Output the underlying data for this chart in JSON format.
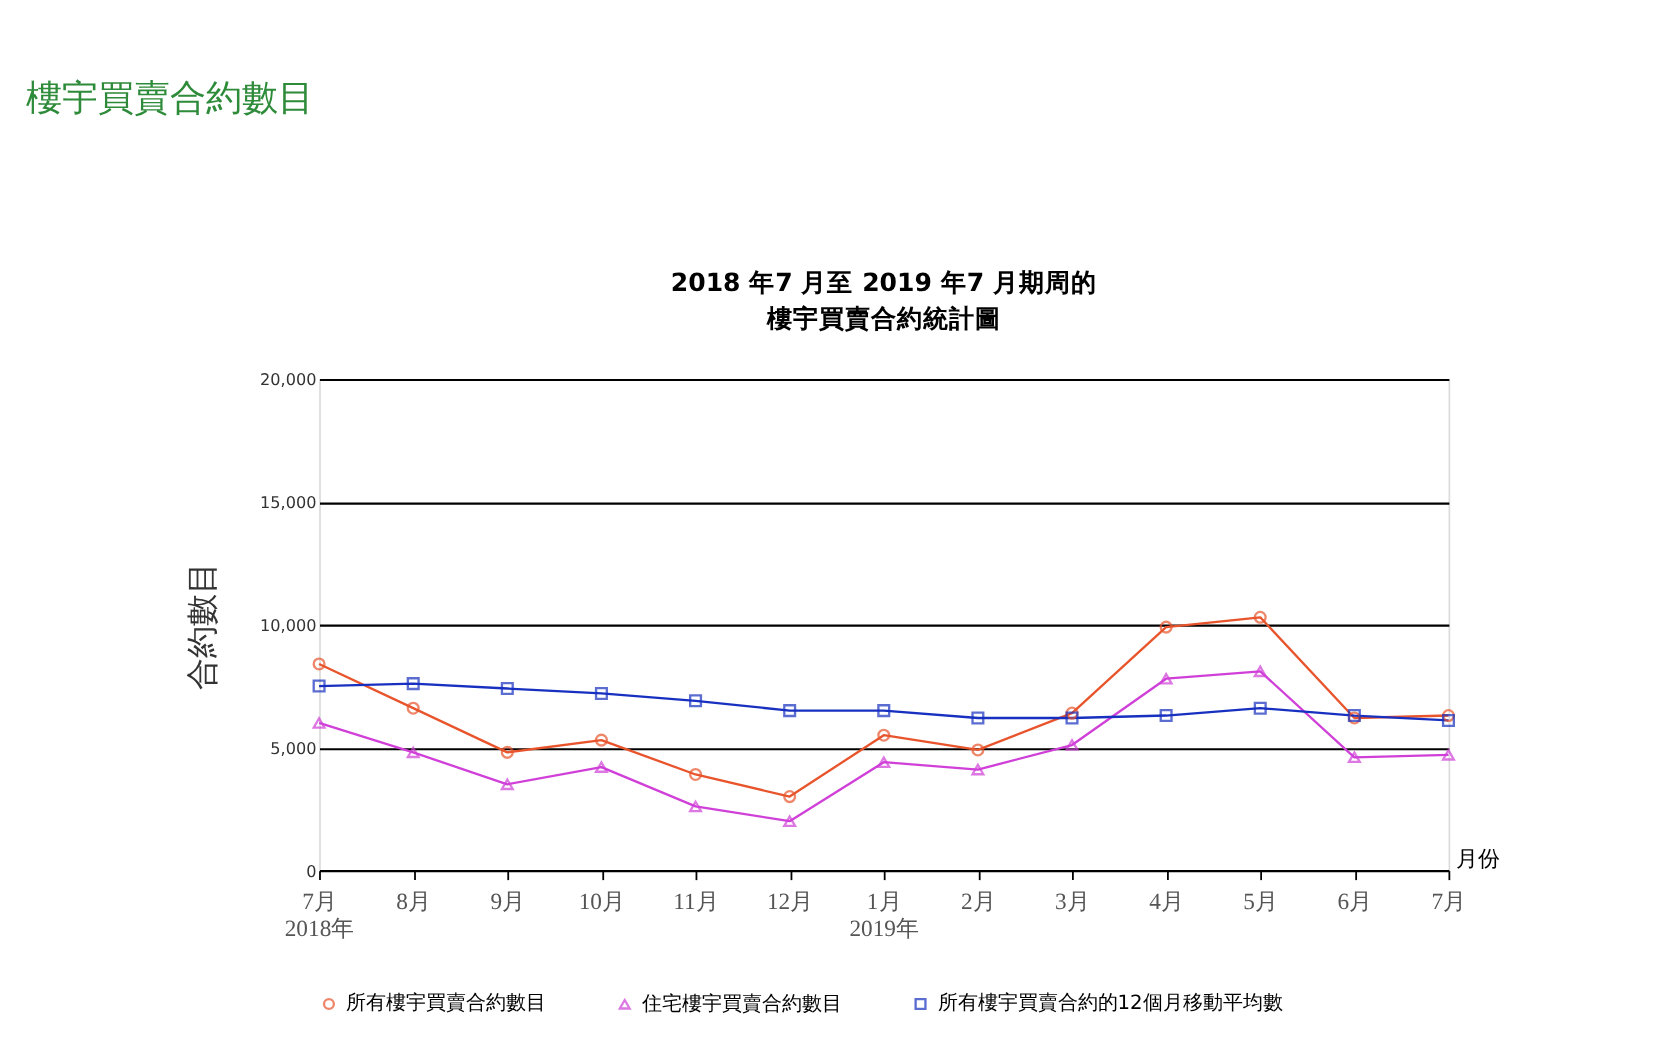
{
  "chart_data": {
    "type": "line",
    "title": "樓宇買賣合約數目",
    "annotations": [
      "2018 年7 月至 2019 年7 月期周的",
      "樓宇買賣合約統計圖"
    ],
    "ylabel": "合約數目",
    "xlabel": "月份",
    "categories": [
      "7月\n2018年",
      "8月",
      "9月",
      "10月",
      "11月",
      "12月",
      "1月\n2019年",
      "2月",
      "3月",
      "4月",
      "5月",
      "6月",
      "7月"
    ],
    "series": [
      {
        "name": "所有樓宇買賣合約數目",
        "color": "#e8542c",
        "marker": "circle",
        "values": [
          8400,
          6600,
          4800,
          5300,
          3900,
          3000,
          5500,
          4900,
          6400,
          9900,
          10300,
          6200,
          6300
        ]
      },
      {
        "name": "住宅樓宇買賣合約數目",
        "color": "#d040d8",
        "marker": "triangle",
        "values": [
          6000,
          4800,
          3500,
          4200,
          2600,
          2000,
          4400,
          4100,
          5100,
          7800,
          8100,
          4600,
          4700
        ]
      },
      {
        "name": "所有樓宇買賣合約的12個月移動平均數",
        "color": "#1830c0",
        "marker": "square",
        "values": [
          7500,
          7600,
          7400,
          7200,
          6900,
          6500,
          6500,
          6200,
          6200,
          6300,
          6600,
          6300,
          6100
        ]
      }
    ],
    "ylim": [
      0,
      20000
    ],
    "yticks": [
      {
        "value": 0,
        "label": "0"
      },
      {
        "value": 5000,
        "label": "5,000"
      },
      {
        "value": 10000,
        "label": "10,000"
      },
      {
        "value": 15000,
        "label": "15,000"
      },
      {
        "value": 20000,
        "label": "20,000"
      }
    ],
    "grid": "y",
    "legend": "bottom",
    "line_style": "solid"
  }
}
